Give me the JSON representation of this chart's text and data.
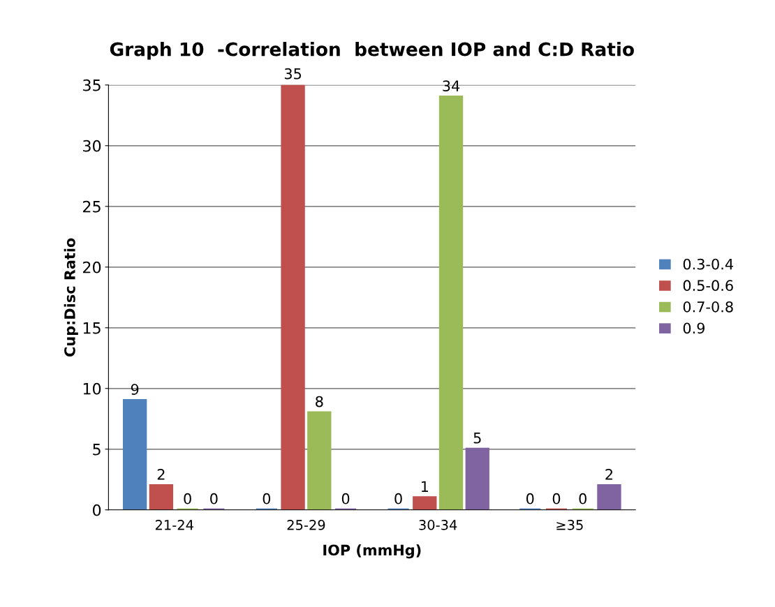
{
  "chart_data": {
    "type": "bar",
    "title": "Graph 10  -Correlation  between IOP and C:D Ratio",
    "xlabel": "IOP (mmHg)",
    "ylabel": "Cup:Disc Ratio",
    "categories": [
      "21-24",
      "25-29",
      "30-34",
      "≥35"
    ],
    "series": [
      {
        "name": "0.3-0.4",
        "color": "#4f81bd",
        "values": [
          9,
          0,
          0,
          0
        ]
      },
      {
        "name": "0.5-0.6",
        "color": "#c0504d",
        "values": [
          2,
          35,
          1,
          0
        ]
      },
      {
        "name": "0.7-0.8",
        "color": "#9bbb59",
        "values": [
          0,
          8,
          34,
          0
        ]
      },
      {
        "name": "0.9",
        "color": "#8064a2",
        "values": [
          0,
          0,
          5,
          2
        ]
      }
    ],
    "ylim": [
      0,
      35
    ],
    "yticks": [
      0,
      5,
      10,
      15,
      20,
      25,
      30,
      35
    ],
    "grid": "y",
    "legend": "right",
    "data_labels": true
  }
}
